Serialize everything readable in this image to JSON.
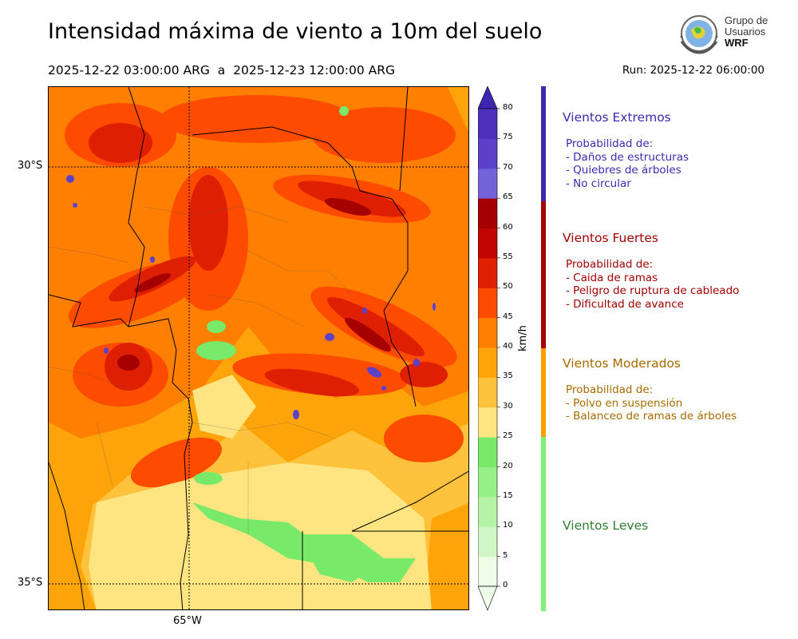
{
  "header": {
    "title": "Intensidad máxima de viento a 10m del suelo",
    "period": "2025-12-22 03:00:00 ARG  a  2025-12-23 12:00:00 ARG",
    "run": "Run: 2025-12-22 06:00:00"
  },
  "logo": {
    "line1": "Grupo de",
    "line2": "Usuarios",
    "line3": "WRF"
  },
  "map": {
    "lat_labels": [
      "30°S",
      "35°S"
    ],
    "lon_labels": [
      "65°W"
    ]
  },
  "colorbar": {
    "unit": "km/h",
    "ticks": [
      "0",
      "5",
      "10",
      "15",
      "20",
      "25",
      "30",
      "35",
      "40",
      "45",
      "50",
      "55",
      "60",
      "65",
      "70",
      "75",
      "80"
    ],
    "colors": [
      "#eefde8",
      "#d2f7c6",
      "#b6f3a6",
      "#97ef87",
      "#79e96a",
      "#ffe582",
      "#fec23c",
      "#fda40a",
      "#fe7f02",
      "#fd4b00",
      "#df1f01",
      "#c10601",
      "#a50100",
      "#7362d8",
      "#5b40c8",
      "#4a30bb",
      "#3f26ae"
    ]
  },
  "categories": [
    {
      "title": "Vientos Extremos",
      "color": "#3a2bb0",
      "lines": [
        "Probabilidad de:",
        "- Daños de estructuras",
        "- Quiebres de árboles",
        "- No circular"
      ]
    },
    {
      "title": "Vientos Fuertes",
      "color": "#a30000",
      "lines": [
        "Probabilidad de:",
        "- Caida de ramas",
        "- Peligro de ruptura de cableado",
        "- Dificultad de avance"
      ]
    },
    {
      "title": "Vientos Moderados",
      "color": "#a86a00",
      "lines": [
        "Probabilidad de:",
        "- Polvo en suspensión",
        "- Balanceo de ramas de árboles"
      ]
    },
    {
      "title": "Vientos Leves",
      "color": "#2e7d32",
      "lines": []
    }
  ],
  "category_bar_colors": [
    "#3a2bb0",
    "#a30000",
    "#fd9d00",
    "#7af27a"
  ]
}
